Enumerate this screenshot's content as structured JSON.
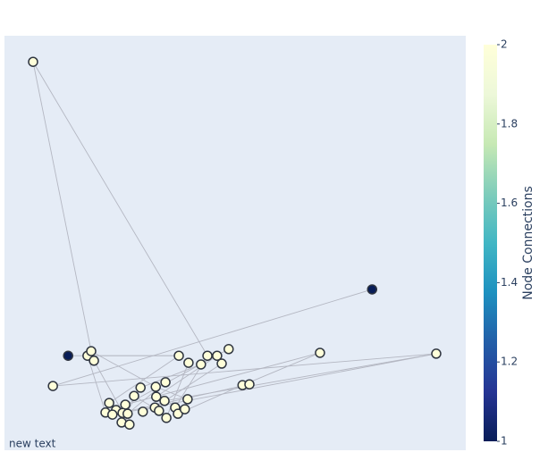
{
  "chart_data": {
    "type": "network",
    "annotation": "new text",
    "xlim": [
      0,
      1
    ],
    "ylim": [
      0,
      1
    ],
    "x": [
      0.062,
      0.797,
      0.138,
      0.18,
      0.188,
      0.194,
      0.105,
      0.684,
      0.936,
      0.486,
      0.44,
      0.461,
      0.471,
      0.378,
      0.399,
      0.426,
      0.516,
      0.531,
      0.349,
      0.328,
      0.295,
      0.281,
      0.329,
      0.347,
      0.397,
      0.227,
      0.262,
      0.242,
      0.219,
      0.234,
      0.256,
      0.267,
      0.3,
      0.326,
      0.335,
      0.37,
      0.376,
      0.391,
      0.351,
      0.254,
      0.271
    ],
    "y": [
      0.937,
      0.388,
      0.228,
      0.228,
      0.239,
      0.216,
      0.155,
      0.235,
      0.233,
      0.244,
      0.228,
      0.228,
      0.209,
      0.228,
      0.211,
      0.207,
      0.157,
      0.159,
      0.164,
      0.153,
      0.151,
      0.131,
      0.129,
      0.119,
      0.123,
      0.114,
      0.11,
      0.097,
      0.091,
      0.086,
      0.09,
      0.088,
      0.093,
      0.103,
      0.095,
      0.103,
      0.088,
      0.099,
      0.078,
      0.067,
      0.062
    ],
    "node_connections": [
      2,
      1,
      1,
      2,
      2,
      2,
      2,
      2,
      2,
      2,
      2,
      2,
      2,
      2,
      2,
      2,
      2,
      2,
      2,
      2,
      2,
      2,
      2,
      2,
      2,
      2,
      2,
      2,
      2,
      2,
      2,
      2,
      2,
      2,
      2,
      2,
      2,
      2,
      2,
      2,
      2
    ],
    "edges": [
      [
        0,
        4
      ],
      [
        0,
        10
      ],
      [
        1,
        6
      ],
      [
        2,
        13
      ],
      [
        3,
        13
      ],
      [
        4,
        19
      ],
      [
        6,
        8
      ],
      [
        7,
        26
      ],
      [
        7,
        16
      ],
      [
        8,
        30
      ],
      [
        8,
        23
      ],
      [
        9,
        27
      ],
      [
        10,
        35
      ],
      [
        11,
        22
      ],
      [
        12,
        33
      ],
      [
        13,
        25
      ],
      [
        14,
        38
      ],
      [
        15,
        20
      ],
      [
        16,
        36
      ],
      [
        17,
        29
      ],
      [
        18,
        31
      ],
      [
        19,
        24
      ],
      [
        20,
        39
      ],
      [
        21,
        34
      ],
      [
        5,
        40
      ],
      [
        3,
        28
      ],
      [
        22,
        37
      ],
      [
        23,
        32
      ]
    ],
    "edge_color": "#b4b7c2",
    "marker_line_color": "#2f3540",
    "colorbar": {
      "title": "Node Connections",
      "lim": [
        1,
        2
      ],
      "ticks": [
        1,
        1.2,
        1.4,
        1.6,
        1.8,
        2
      ],
      "colorscale": [
        [
          0,
          "#081d58"
        ],
        [
          0.125,
          "#253494"
        ],
        [
          0.25,
          "#225ea8"
        ],
        [
          0.375,
          "#1d91c0"
        ],
        [
          0.5,
          "#41b6c4"
        ],
        [
          0.625,
          "#7fcdbb"
        ],
        [
          0.75,
          "#c7e9b4"
        ],
        [
          0.875,
          "#edf8d9"
        ],
        [
          1,
          "#ffffd9"
        ]
      ]
    }
  }
}
